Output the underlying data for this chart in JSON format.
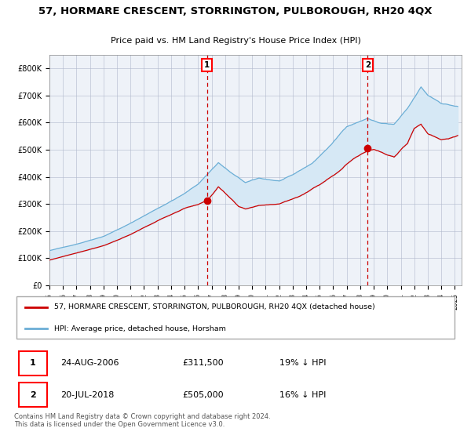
{
  "title": "57, HORMARE CRESCENT, STORRINGTON, PULBOROUGH, RH20 4QX",
  "subtitle": "Price paid vs. HM Land Registry's House Price Index (HPI)",
  "legend_line1": "57, HORMARE CRESCENT, STORRINGTON, PULBOROUGH, RH20 4QX (detached house)",
  "legend_line2": "HPI: Average price, detached house, Horsham",
  "annotation1_date": "24-AUG-2006",
  "annotation1_price": "£311,500",
  "annotation1_hpi": "19% ↓ HPI",
  "annotation2_date": "20-JUL-2018",
  "annotation2_price": "£505,000",
  "annotation2_hpi": "16% ↓ HPI",
  "sale1_date_num": 2006.65,
  "sale1_price": 311500,
  "sale2_date_num": 2018.55,
  "sale2_price": 505000,
  "hpi_color": "#6baed6",
  "price_color": "#cc0000",
  "fill_color": "#d6e8f5",
  "vline_color": "#cc0000",
  "plot_bg_color": "#eef2f8",
  "footer_text": "Contains HM Land Registry data © Crown copyright and database right 2024.\nThis data is licensed under the Open Government Licence v3.0.",
  "ylim": [
    0,
    850000
  ],
  "yticks": [
    0,
    100000,
    200000,
    300000,
    400000,
    500000,
    600000,
    700000,
    800000
  ],
  "ytick_labels": [
    "£0",
    "£100K",
    "£200K",
    "£300K",
    "£400K",
    "£500K",
    "£600K",
    "£700K",
    "£800K"
  ]
}
